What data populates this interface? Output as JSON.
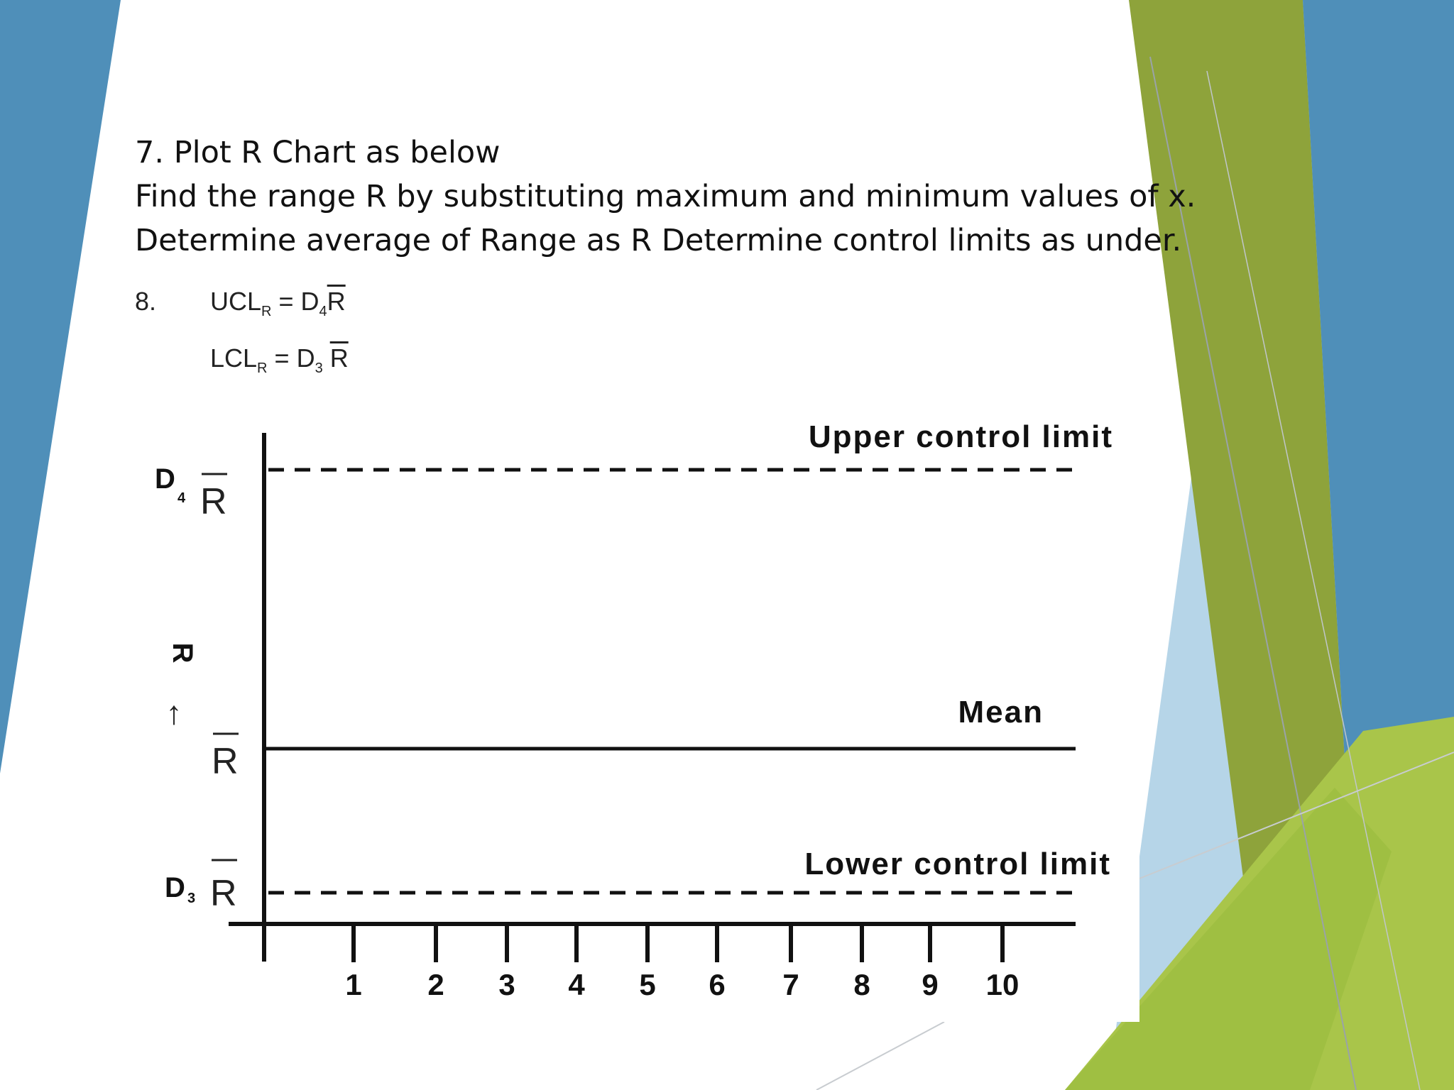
{
  "slide": {
    "lines": [
      "7. Plot R Chart as below",
      "Find the range R by substituting maximum and minimum values of x.",
      "Determine average of Range as R Determine control limits as under."
    ]
  },
  "formula": {
    "step": "8.",
    "ucl": {
      "lhs": "UCL",
      "lhs_sub": "R",
      "eq": "=",
      "coef": "D",
      "coef_sub": "4",
      "bar": "R"
    },
    "lcl": {
      "lhs": "LCL",
      "lhs_sub": "R",
      "eq": "=",
      "coef": "D",
      "coef_sub": "3",
      "bar": "R"
    }
  },
  "chart_data": {
    "type": "line",
    "x": [
      1,
      2,
      3,
      4,
      5,
      6,
      7,
      8,
      9,
      10
    ],
    "tick_labels": [
      "1",
      "2",
      "3",
      "4",
      "5",
      "6",
      "7",
      "8",
      "9",
      "10"
    ],
    "ylabel": "R",
    "lines": [
      {
        "name": "Upper control limit",
        "style": "dashed",
        "level_label": "D",
        "level_sub": "4",
        "level_bar": "R"
      },
      {
        "name": "Mean",
        "style": "solid",
        "level_label": "",
        "level_sub": "",
        "level_bar": "R"
      },
      {
        "name": "Lower control limit",
        "style": "dashed",
        "level_label": "D",
        "level_sub": "3",
        "level_bar": "R"
      }
    ]
  },
  "colors": {
    "blue": "#4f8fb9",
    "olive": "#8ea33b",
    "lime": "#a9c54a",
    "light_blue": "#b6d5e8"
  }
}
